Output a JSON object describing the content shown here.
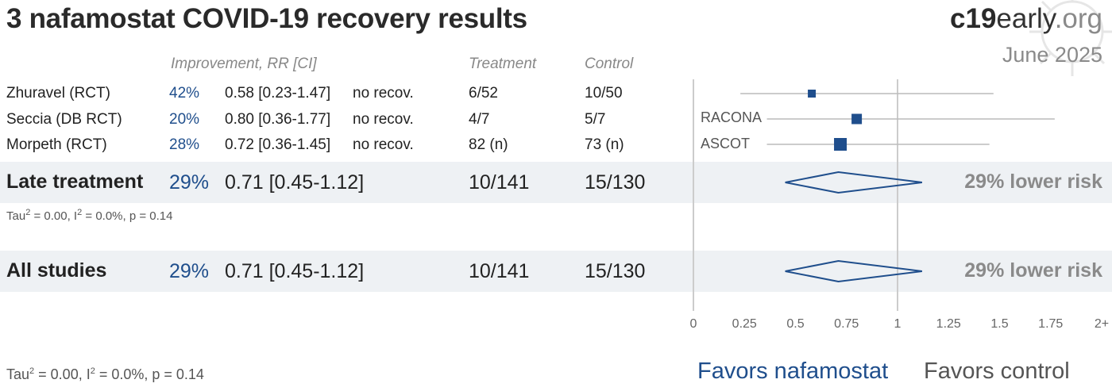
{
  "title": "3 nafamostat COVID-19 recovery results",
  "brand": {
    "part1": "c19",
    "part2": "early",
    "part3": ".org"
  },
  "date": "June 2025",
  "headers": {
    "improvement": "Improvement, RR [CI]",
    "treatment": "Treatment",
    "control": "Control"
  },
  "studies": [
    {
      "name": "Zhuravel (RCT)",
      "improvement": "42%",
      "rr_ci": "0.58 [0.23-1.47]",
      "outcome": "no recov.",
      "treatment": "6/52",
      "control": "10/50",
      "label": ""
    },
    {
      "name": "Seccia (DB RCT)",
      "improvement": "20%",
      "rr_ci": "0.80 [0.36-1.77]",
      "outcome": "no recov.",
      "treatment": "4/7",
      "control": "5/7",
      "label": "RACONA"
    },
    {
      "name": "Morpeth (RCT)",
      "improvement": "28%",
      "rr_ci": "0.72 [0.36-1.45]",
      "outcome": "no recov.",
      "treatment": "82 (n)",
      "control": "73 (n)",
      "label": "ASCOT"
    }
  ],
  "late": {
    "name": "Late treatment",
    "improvement": "29%",
    "rr_ci": "0.71 [0.45-1.12]",
    "treatment": "10/141",
    "control": "15/130",
    "summary": "29% lower risk",
    "stats_prefix": "Tau",
    "stats_mid": " = 0.00, I",
    "stats_suffix": " = 0.0%, p = 0.14",
    "sup": "2"
  },
  "all": {
    "name": "All studies",
    "improvement": "29%",
    "rr_ci": "0.71 [0.45-1.12]",
    "treatment": "10/141",
    "control": "15/130",
    "summary": "29% lower risk",
    "stats_prefix": "Tau",
    "stats_mid": " = 0.00, I",
    "stats_suffix": " = 0.0%, p = 0.14",
    "sup": "2"
  },
  "axis_ticks": [
    "0",
    "0.25",
    "0.5",
    "0.75",
    "1",
    "1.25",
    "1.5",
    "1.75",
    "2+"
  ],
  "favors": {
    "left": "Favors nafamostat",
    "right": "Favors control"
  },
  "colors": {
    "accent": "#1f4e8c",
    "ci_line": "#bbbbbb",
    "band": "#eef1f4"
  },
  "chart_data": {
    "type": "forest",
    "title": "3 nafamostat COVID-19 recovery results",
    "x_range": [
      0,
      2
    ],
    "reference": 1,
    "points": [
      {
        "study": "Zhuravel (RCT)",
        "rr": 0.58,
        "lo": 0.23,
        "hi": 1.47,
        "weight": 1
      },
      {
        "study": "Seccia (DB RCT)",
        "rr": 0.8,
        "lo": 0.36,
        "hi": 1.77,
        "weight": 1.3
      },
      {
        "study": "Morpeth (RCT)",
        "rr": 0.72,
        "lo": 0.36,
        "hi": 1.45,
        "weight": 1.6
      }
    ],
    "pooled": [
      {
        "group": "Late treatment",
        "rr": 0.71,
        "lo": 0.45,
        "hi": 1.12
      },
      {
        "group": "All studies",
        "rr": 0.71,
        "lo": 0.45,
        "hi": 1.12
      }
    ]
  }
}
